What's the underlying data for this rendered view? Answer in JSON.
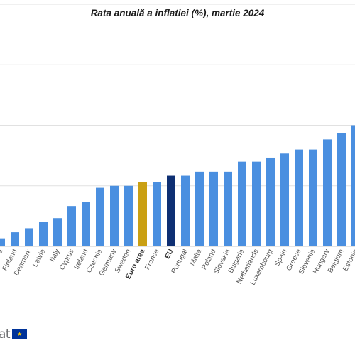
{
  "title": "Rata anuală a inflatiei (%), martie 2024",
  "logo": {
    "text": "at",
    "flag_icon": "eu-flag-icon"
  },
  "colors": {
    "country": "#4a8fe0",
    "euro_area": "#caa013",
    "eu": "#0e2f73",
    "grid": "#e1e1e1"
  },
  "chart_data": {
    "type": "bar",
    "title": "Rata anuală a inflatiei (%), martie 2024",
    "xlabel": "",
    "ylabel": "",
    "grid": true,
    "categories": [
      "a",
      "Finland",
      "Denmark",
      "Latvia",
      "Italy",
      "Cyprus",
      "Ireland",
      "Czechia",
      "Germany",
      "Sweden",
      "Euro area",
      "France",
      "EU",
      "Portugal",
      "Malta",
      "Poland",
      "Slovakia",
      "Bulgaria",
      "Netherlands",
      "Luxembourg",
      "Spain",
      "Greece",
      "Slovenia",
      "Hungary",
      "Belgium",
      "Estonia"
    ],
    "values": [
      0.4,
      0.7,
      0.9,
      1.2,
      1.4,
      2.0,
      2.2,
      2.9,
      3.0,
      3.0,
      3.2,
      3.2,
      3.5,
      3.5,
      3.7,
      3.7,
      3.7,
      4.2,
      4.2,
      4.4,
      4.6,
      4.8,
      4.8,
      5.3,
      5.6,
      6.0
    ],
    "highlight": {
      "Euro area": "euro_area",
      "EU": "eu"
    },
    "ylim": [
      0,
      12
    ]
  }
}
